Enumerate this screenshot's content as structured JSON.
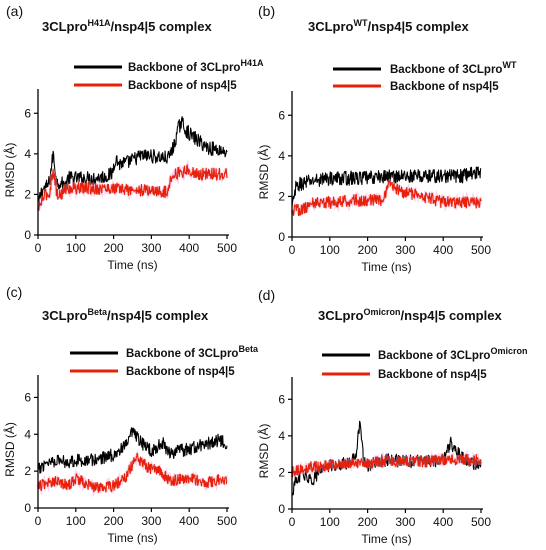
{
  "colors": {
    "black_series": "#000000",
    "red_series": "#e8200a",
    "red_glow": "#f3a7d6"
  },
  "chart_data": [
    {
      "panel": "(a)",
      "type": "line",
      "title_main": "3CLpro",
      "title_sup": "H41A",
      "title_rest": "/nsp4|5 complex",
      "xlabel": "Time (ns)",
      "ylabel": "RMSD (Å)",
      "xlim": [
        0,
        500
      ],
      "ylim": [
        0,
        7
      ],
      "xticks": [
        0,
        100,
        200,
        300,
        400,
        500
      ],
      "yticks": [
        0,
        2,
        4,
        6
      ],
      "grid": false,
      "legend_position": "top",
      "series": [
        {
          "name_main": "Backbone of 3CLpro",
          "name_sup": "H41A",
          "color": "#000000",
          "x": [
            0,
            10,
            20,
            30,
            40,
            50,
            60,
            70,
            80,
            100,
            120,
            150,
            180,
            195,
            205,
            215,
            240,
            270,
            300,
            330,
            345,
            360,
            370,
            380,
            390,
            400,
            420,
            450,
            480,
            500
          ],
          "y": [
            1.5,
            2.2,
            2.3,
            2.6,
            4.0,
            2.6,
            2.6,
            2.4,
            2.8,
            2.8,
            2.8,
            2.8,
            2.9,
            3.0,
            3.8,
            3.5,
            3.6,
            3.9,
            3.9,
            3.8,
            3.8,
            4.4,
            5.2,
            5.6,
            5.2,
            5.0,
            4.7,
            4.3,
            4.2,
            4.1
          ]
        },
        {
          "name_main": "Backbone of nsp4|5",
          "name_sup": "",
          "color": "#e8200a",
          "x": [
            0,
            10,
            20,
            30,
            40,
            50,
            60,
            70,
            80,
            100,
            150,
            200,
            250,
            300,
            340,
            345,
            350,
            360,
            380,
            400,
            420,
            450,
            480,
            500
          ],
          "y": [
            1.2,
            1.7,
            2.0,
            2.0,
            3.3,
            2.0,
            2.0,
            2.2,
            2.3,
            2.3,
            2.3,
            2.3,
            2.2,
            2.2,
            2.1,
            2.2,
            2.9,
            3.0,
            3.1,
            3.2,
            3.0,
            3.0,
            3.0,
            3.0
          ]
        }
      ]
    },
    {
      "panel": "(b)",
      "type": "line",
      "title_main": "3CLpro",
      "title_sup": "WT",
      "title_rest": "/nsp4|5 complex",
      "xlabel": "Time (ns)",
      "ylabel": "RMSD (Å)",
      "xlim": [
        0,
        500
      ],
      "ylim": [
        0,
        7
      ],
      "xticks": [
        0,
        100,
        200,
        300,
        400,
        500
      ],
      "yticks": [
        0,
        2,
        4,
        6
      ],
      "grid": false,
      "legend_position": "top",
      "series": [
        {
          "name_main": "Backbone of 3CLpro",
          "name_sup": "WT",
          "color": "#000000",
          "x": [
            0,
            10,
            20,
            40,
            60,
            100,
            150,
            200,
            250,
            300,
            350,
            400,
            450,
            480,
            500
          ],
          "y": [
            1.4,
            2.4,
            2.6,
            2.7,
            2.8,
            2.9,
            2.9,
            2.9,
            3.0,
            3.0,
            3.0,
            3.0,
            3.0,
            3.2,
            3.1
          ]
        },
        {
          "name_main": "Backbone of nsp4|5",
          "name_sup": "",
          "color": "#e8200a",
          "x": [
            0,
            10,
            20,
            40,
            60,
            100,
            150,
            200,
            240,
            260,
            280,
            300,
            350,
            400,
            450,
            500
          ],
          "y": [
            1.2,
            1.5,
            1.3,
            1.5,
            1.7,
            1.7,
            1.8,
            1.8,
            1.8,
            2.6,
            2.3,
            2.2,
            2.0,
            1.7,
            1.7,
            1.7
          ]
        }
      ]
    },
    {
      "panel": "(c)",
      "type": "line",
      "title_main": "3CLpro",
      "title_sup": "Beta",
      "title_rest": "/nsp4|5 complex",
      "xlabel": "Time (ns)",
      "ylabel": "RMSD (Å)",
      "xlim": [
        0,
        500
      ],
      "ylim": [
        0,
        7
      ],
      "xticks": [
        0,
        100,
        200,
        300,
        400,
        500
      ],
      "yticks": [
        0,
        2,
        4,
        6
      ],
      "grid": false,
      "legend_position": "top",
      "series": [
        {
          "name_main": "Backbone of 3CLpro",
          "name_sup": "Beta",
          "color": "#000000",
          "x": [
            0,
            20,
            50,
            80,
            100,
            150,
            200,
            230,
            250,
            270,
            300,
            330,
            350,
            400,
            450,
            480,
            500
          ],
          "y": [
            2.0,
            2.5,
            2.6,
            2.5,
            2.6,
            2.6,
            2.9,
            3.3,
            4.1,
            3.6,
            3.1,
            3.5,
            3.0,
            3.2,
            3.5,
            3.7,
            3.5
          ]
        },
        {
          "name_main": "Backbone of nsp4|5",
          "name_sup": "",
          "color": "#e8200a",
          "x": [
            0,
            20,
            50,
            80,
            100,
            150,
            200,
            230,
            260,
            290,
            320,
            350,
            400,
            450,
            500
          ],
          "y": [
            1.2,
            1.3,
            1.5,
            1.2,
            1.6,
            1.1,
            1.2,
            1.6,
            2.8,
            2.2,
            2.0,
            1.5,
            1.6,
            1.4,
            1.6
          ]
        }
      ]
    },
    {
      "panel": "(d)",
      "type": "line",
      "title_main": "3CLpro",
      "title_sup": "Omicron",
      "title_rest": "/nsp4|5 complex",
      "xlabel": "Time (ns)",
      "ylabel": "RMSD (Å)",
      "xlim": [
        0,
        500
      ],
      "ylim": [
        0,
        7
      ],
      "xticks": [
        0,
        100,
        200,
        300,
        400,
        500
      ],
      "yticks": [
        0,
        2,
        4,
        6
      ],
      "grid": false,
      "legend_position": "top",
      "series": [
        {
          "name_main": "Backbone of 3CLpro",
          "name_sup": "Omicron",
          "color": "#000000",
          "x": [
            0,
            10,
            30,
            50,
            80,
            100,
            150,
            170,
            180,
            190,
            200,
            250,
            300,
            350,
            400,
            420,
            450,
            480,
            500
          ],
          "y": [
            0.8,
            1.5,
            2.0,
            1.5,
            2.2,
            2.4,
            2.5,
            3.0,
            4.8,
            2.5,
            2.4,
            2.7,
            2.6,
            2.6,
            2.7,
            3.6,
            2.8,
            2.5,
            2.4
          ]
        },
        {
          "name_main": "Backbone of nsp4|5",
          "name_sup": "",
          "color": "#e8200a",
          "x": [
            0,
            20,
            50,
            100,
            150,
            200,
            250,
            300,
            350,
            400,
            450,
            500
          ],
          "y": [
            2.0,
            2.2,
            2.3,
            2.4,
            2.5,
            2.5,
            2.6,
            2.6,
            2.6,
            2.7,
            2.7,
            2.7
          ]
        }
      ]
    }
  ]
}
